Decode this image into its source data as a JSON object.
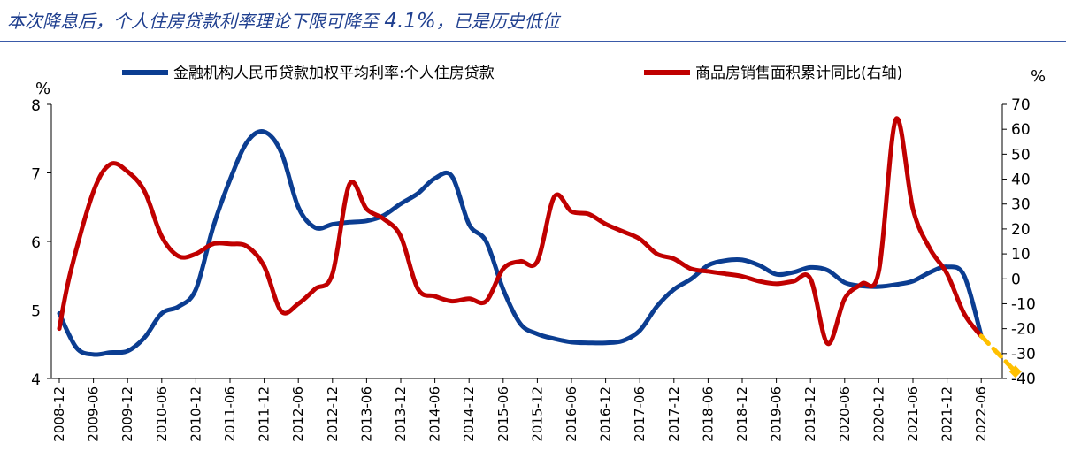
{
  "title": {
    "before": "本次降息后，个人住房贷款利率理论下限可降至 ",
    "highlight": "4.1%",
    "after": "，已是历史低位"
  },
  "colors": {
    "rate": "#0b3d91",
    "sales": "#c00000",
    "projection": "#ffc000",
    "title": "#1f3f8f"
  },
  "chart_data": {
    "type": "line",
    "y_left": {
      "unit": "%",
      "min": 4,
      "max": 8,
      "ticks": [
        4,
        5,
        6,
        7,
        8
      ]
    },
    "y_right": {
      "unit": "%",
      "min": -40,
      "max": 70,
      "ticks": [
        -40,
        -30,
        -20,
        -10,
        0,
        10,
        20,
        30,
        40,
        50,
        60,
        70
      ]
    },
    "x_range": [
      "2008-12",
      "2022-12"
    ],
    "x_ticks": [
      "2008-12",
      "2009-06",
      "2009-12",
      "2010-06",
      "2010-12",
      "2011-06",
      "2011-12",
      "2012-06",
      "2012-12",
      "2013-06",
      "2013-12",
      "2014-06",
      "2014-12",
      "2015-06",
      "2015-12",
      "2016-06",
      "2016-12",
      "2017-06",
      "2017-12",
      "2018-06",
      "2018-12",
      "2019-06",
      "2019-12",
      "2020-06",
      "2020-12",
      "2021-06",
      "2021-12",
      "2022-06"
    ],
    "series": [
      {
        "name": "金融机构人民币贷款加权平均利率:个人住房贷款",
        "axis": "left",
        "points": [
          [
            "2008-12",
            4.95
          ],
          [
            "2009-03",
            4.45
          ],
          [
            "2009-06",
            4.35
          ],
          [
            "2009-09",
            4.38
          ],
          [
            "2009-12",
            4.4
          ],
          [
            "2010-03",
            4.6
          ],
          [
            "2010-06",
            4.95
          ],
          [
            "2010-09",
            5.05
          ],
          [
            "2010-12",
            5.3
          ],
          [
            "2011-03",
            6.2
          ],
          [
            "2011-06",
            6.9
          ],
          [
            "2011-09",
            7.45
          ],
          [
            "2011-12",
            7.6
          ],
          [
            "2012-03",
            7.3
          ],
          [
            "2012-06",
            6.5
          ],
          [
            "2012-09",
            6.2
          ],
          [
            "2012-12",
            6.25
          ],
          [
            "2013-03",
            6.28
          ],
          [
            "2013-06",
            6.3
          ],
          [
            "2013-09",
            6.38
          ],
          [
            "2013-12",
            6.55
          ],
          [
            "2014-03",
            6.7
          ],
          [
            "2014-06",
            6.92
          ],
          [
            "2014-09",
            6.95
          ],
          [
            "2014-12",
            6.25
          ],
          [
            "2015-03",
            6.0
          ],
          [
            "2015-06",
            5.3
          ],
          [
            "2015-09",
            4.8
          ],
          [
            "2015-12",
            4.65
          ],
          [
            "2016-03",
            4.58
          ],
          [
            "2016-06",
            4.53
          ],
          [
            "2016-09",
            4.52
          ],
          [
            "2016-12",
            4.52
          ],
          [
            "2017-03",
            4.55
          ],
          [
            "2017-06",
            4.7
          ],
          [
            "2017-09",
            5.05
          ],
          [
            "2017-12",
            5.3
          ],
          [
            "2018-03",
            5.45
          ],
          [
            "2018-06",
            5.65
          ],
          [
            "2018-09",
            5.72
          ],
          [
            "2018-12",
            5.73
          ],
          [
            "2019-03",
            5.65
          ],
          [
            "2019-06",
            5.52
          ],
          [
            "2019-09",
            5.55
          ],
          [
            "2019-12",
            5.62
          ],
          [
            "2020-03",
            5.58
          ],
          [
            "2020-06",
            5.4
          ],
          [
            "2020-09",
            5.35
          ],
          [
            "2020-12",
            5.34
          ],
          [
            "2021-03",
            5.37
          ],
          [
            "2021-06",
            5.42
          ],
          [
            "2021-09",
            5.55
          ],
          [
            "2021-12",
            5.63
          ],
          [
            "2022-03",
            5.5
          ],
          [
            "2022-06",
            4.62
          ]
        ]
      },
      {
        "name": "商品房销售面积累计同比(右轴)",
        "axis": "right",
        "points": [
          [
            "2008-12",
            -20
          ],
          [
            "2009-02",
            3
          ],
          [
            "2009-06",
            35
          ],
          [
            "2009-09",
            46
          ],
          [
            "2009-12",
            43
          ],
          [
            "2010-03",
            35
          ],
          [
            "2010-06",
            17
          ],
          [
            "2010-09",
            9
          ],
          [
            "2010-12",
            10
          ],
          [
            "2011-03",
            14
          ],
          [
            "2011-06",
            14
          ],
          [
            "2011-09",
            13
          ],
          [
            "2011-12",
            5
          ],
          [
            "2012-03",
            -13
          ],
          [
            "2012-06",
            -10
          ],
          [
            "2012-09",
            -4
          ],
          [
            "2012-12",
            2
          ],
          [
            "2013-03",
            38
          ],
          [
            "2013-06",
            28
          ],
          [
            "2013-09",
            24
          ],
          [
            "2013-12",
            17
          ],
          [
            "2014-03",
            -4
          ],
          [
            "2014-06",
            -7
          ],
          [
            "2014-09",
            -9
          ],
          [
            "2014-12",
            -8
          ],
          [
            "2015-03",
            -9
          ],
          [
            "2015-06",
            4
          ],
          [
            "2015-09",
            7
          ],
          [
            "2015-12",
            7
          ],
          [
            "2016-03",
            33
          ],
          [
            "2016-06",
            27
          ],
          [
            "2016-09",
            26
          ],
          [
            "2016-12",
            22
          ],
          [
            "2017-03",
            19
          ],
          [
            "2017-06",
            16
          ],
          [
            "2017-09",
            10
          ],
          [
            "2017-12",
            8
          ],
          [
            "2018-03",
            4
          ],
          [
            "2018-06",
            3
          ],
          [
            "2018-09",
            2
          ],
          [
            "2018-12",
            1
          ],
          [
            "2019-03",
            -1
          ],
          [
            "2019-06",
            -2
          ],
          [
            "2019-09",
            -1
          ],
          [
            "2019-12",
            0
          ],
          [
            "2020-03",
            -26
          ],
          [
            "2020-06",
            -8
          ],
          [
            "2020-09",
            -2
          ],
          [
            "2020-12",
            3
          ],
          [
            "2021-03",
            64
          ],
          [
            "2021-06",
            28
          ],
          [
            "2021-09",
            12
          ],
          [
            "2021-12",
            2
          ],
          [
            "2022-03",
            -14
          ],
          [
            "2022-06",
            -23
          ]
        ]
      },
      {
        "name": "projection",
        "axis": "left",
        "style": "dashed",
        "points": [
          [
            "2022-06",
            4.62
          ],
          [
            "2022-12",
            4.1
          ]
        ]
      }
    ],
    "legend_position": "top",
    "grid": false
  }
}
